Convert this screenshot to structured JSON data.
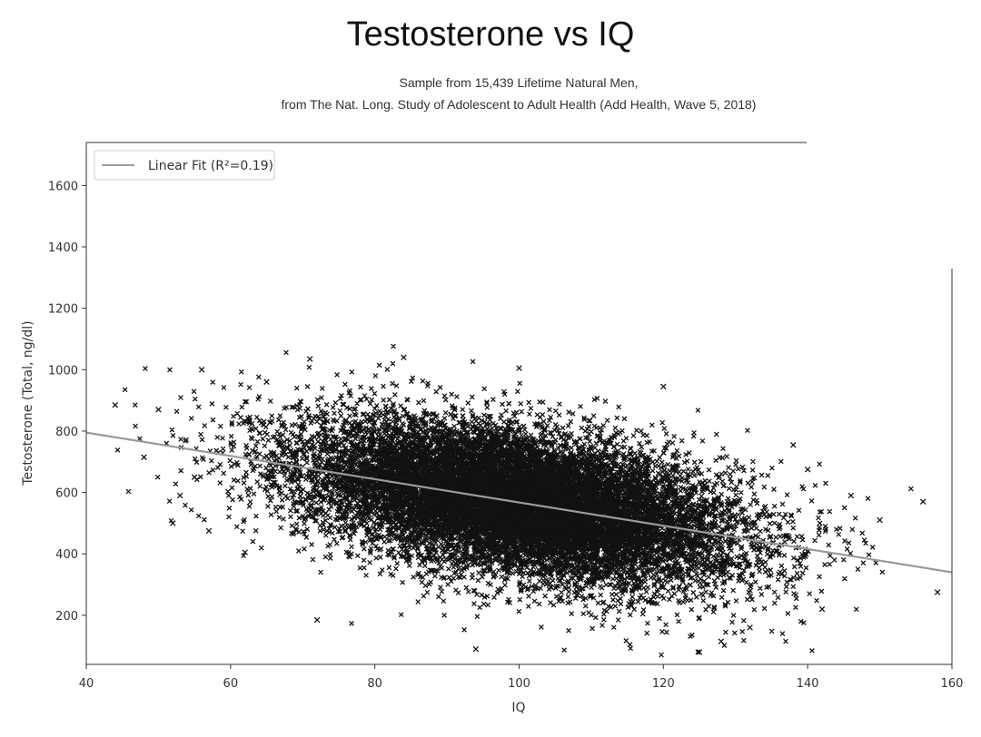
{
  "chart_data": {
    "type": "scatter",
    "title": "Testosterone vs IQ",
    "subtitle_lines": [
      "Sample from 15,439 Lifetime Natural Men,",
      "from The Nat. Long. Study of Adolescent to Adult Health (Add Health, Wave 5, 2018)"
    ],
    "xlabel": "IQ",
    "ylabel": "Testosterone (Total, ng/dl)",
    "xlim": [
      40,
      160
    ],
    "ylim": [
      40,
      1740
    ],
    "xticks": [
      40,
      60,
      80,
      100,
      120,
      140,
      160
    ],
    "yticks": [
      200,
      400,
      600,
      800,
      1000,
      1200,
      1400,
      1600
    ],
    "grid": false,
    "legend": {
      "placement": "top-left",
      "entries": [
        "Linear Fit (R²=0.19)"
      ]
    },
    "colors": {
      "points": "#111111",
      "fit_line": "#9a9a9a"
    },
    "sample_size": 15439,
    "cloud": {
      "iq_mean": 100,
      "iq_sd": 15,
      "t_mean": 585,
      "t_sd": 115
    },
    "fit": {
      "x": [
        40,
        160
      ],
      "y": [
        795,
        340
      ]
    },
    "outliers": {
      "x": [
        44,
        48,
        50,
        52,
        53,
        55,
        56,
        57,
        62,
        65,
        71,
        72,
        84,
        94,
        100,
        120,
        125,
        128,
        132,
        138,
        140,
        142,
        146,
        150,
        156,
        158
      ],
      "y": [
        885,
        715,
        870,
        500,
        590,
        650,
        1000,
        475,
        405,
        960,
        1035,
        185,
        1040,
        90,
        1005,
        945,
        80,
        115,
        160,
        755,
        675,
        220,
        590,
        510,
        570,
        275
      ]
    }
  }
}
